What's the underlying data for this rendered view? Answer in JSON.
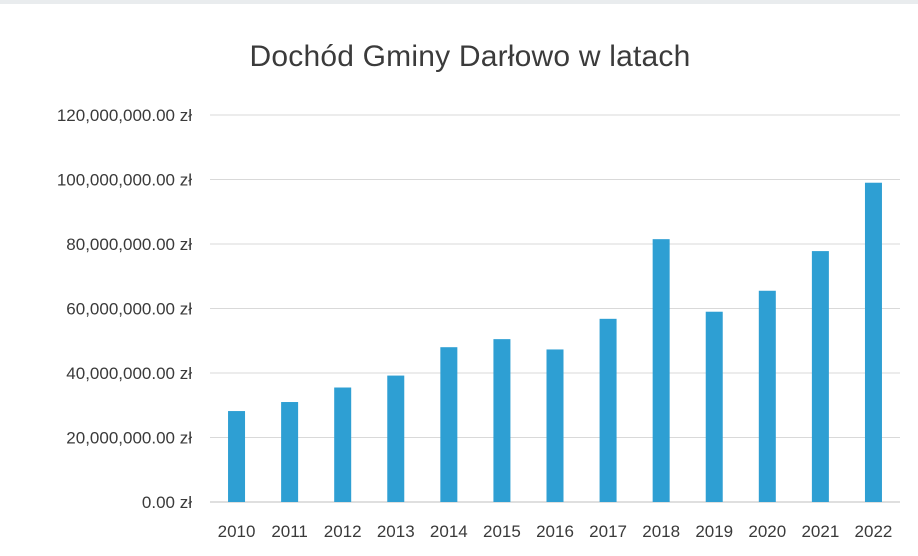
{
  "chart_data": {
    "type": "bar",
    "title": "Dochód Gminy Darłowo w latach",
    "xlabel": "",
    "ylabel": "",
    "categories": [
      "2010",
      "2011",
      "2012",
      "2013",
      "2014",
      "2015",
      "2016",
      "2017",
      "2018",
      "2019",
      "2020",
      "2021",
      "2022"
    ],
    "series": [
      {
        "values": [
          28200000,
          31000000,
          35500000,
          39200000,
          48000000,
          50500000,
          47300000,
          56800000,
          81500000,
          59000000,
          65500000,
          77800000,
          99000000
        ]
      }
    ],
    "ylim": [
      0,
      120000000
    ],
    "yticks": [
      0,
      20000000,
      40000000,
      60000000,
      80000000,
      100000000,
      120000000
    ],
    "ytick_labels": [
      "0.00 zł",
      "20,000,000.00 zł",
      "40,000,000.00 zł",
      "60,000,000.00 zł",
      "80,000,000.00 zł",
      "100,000,000.00 zł",
      "120,000,000.00 zł"
    ],
    "grid": true,
    "legend": "none",
    "colors": {
      "bar": "#2e9fd3",
      "grid": "#d9d9d9",
      "axis": "#bfbfbf"
    }
  }
}
